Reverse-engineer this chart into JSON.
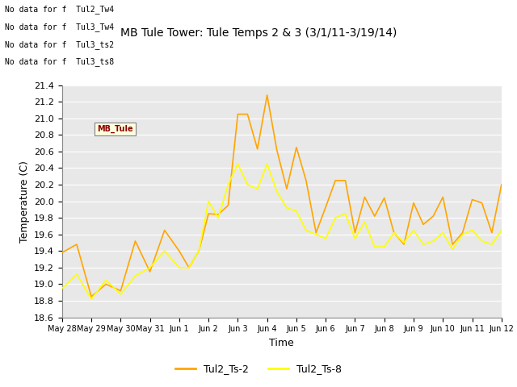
{
  "title": "MB Tule Tower: Tule Temps 2 & 3 (3/1/11-3/19/14)",
  "xlabel": "Time",
  "ylabel": "Temperature (C)",
  "ylim": [
    18.6,
    21.4
  ],
  "legend_labels": [
    "Tul2_Ts-2",
    "Tul2_Ts-8"
  ],
  "line_colors": [
    "#FFA500",
    "#FFFF00"
  ],
  "no_data_texts": [
    "No data for f  Tul2_Tw4",
    "No data for f  Tul3_Tw4",
    "No data for f  Tul3_ts2",
    "No data for f  Tul3_ts8"
  ],
  "bg_color": "#E8E8E8",
  "x_tick_labels": [
    "May 28",
    "May 29",
    "May 30",
    "May 31",
    "Jun 1",
    "Jun 2",
    "Jun 3",
    "Jun 4",
    "Jun 5",
    "Jun 6",
    "Jun 7",
    "Jun 8",
    "Jun 9",
    "Jun 10",
    "Jun 11",
    "Jun 12"
  ],
  "ts2_x": [
    0,
    0.5,
    1.0,
    1.5,
    2.0,
    2.5,
    3.0,
    3.5,
    4.0,
    4.33,
    4.67,
    5.0,
    5.33,
    5.67,
    6.0,
    6.33,
    6.67,
    7.0,
    7.33,
    7.67,
    8.0,
    8.33,
    8.67,
    9.0,
    9.33,
    9.67,
    10.0,
    10.33,
    10.67,
    11.0,
    11.33,
    11.67,
    12.0,
    12.33,
    12.67,
    13.0,
    13.33,
    13.67,
    14.0,
    14.33,
    14.67,
    15.0
  ],
  "ts2_y": [
    19.38,
    19.48,
    18.85,
    19.0,
    18.92,
    19.52,
    19.15,
    19.65,
    19.4,
    19.2,
    19.4,
    19.85,
    19.84,
    19.95,
    21.05,
    21.05,
    20.63,
    21.28,
    20.62,
    20.15,
    20.65,
    20.25,
    19.62,
    19.93,
    20.25,
    20.25,
    19.62,
    20.05,
    19.82,
    20.04,
    19.62,
    19.48,
    19.98,
    19.72,
    19.82,
    20.05,
    19.48,
    19.62,
    20.02,
    19.98,
    19.62,
    20.2
  ],
  "ts8_x": [
    0,
    0.5,
    1.0,
    1.5,
    2.0,
    2.5,
    3.0,
    3.5,
    4.0,
    4.33,
    4.67,
    5.0,
    5.33,
    5.67,
    6.0,
    6.33,
    6.67,
    7.0,
    7.33,
    7.67,
    8.0,
    8.33,
    8.67,
    9.0,
    9.33,
    9.67,
    10.0,
    10.33,
    10.67,
    11.0,
    11.33,
    11.67,
    12.0,
    12.33,
    12.67,
    13.0,
    13.33,
    13.67,
    14.0,
    14.33,
    14.67,
    15.0
  ],
  "ts8_y": [
    18.95,
    19.12,
    18.82,
    19.05,
    18.88,
    19.1,
    19.2,
    19.4,
    19.2,
    19.2,
    19.4,
    20.0,
    19.8,
    20.2,
    20.45,
    20.2,
    20.15,
    20.45,
    20.12,
    19.92,
    19.88,
    19.65,
    19.6,
    19.55,
    19.8,
    19.85,
    19.55,
    19.75,
    19.45,
    19.45,
    19.62,
    19.5,
    19.65,
    19.48,
    19.52,
    19.62,
    19.42,
    19.6,
    19.65,
    19.52,
    19.48,
    19.65
  ],
  "yticks": [
    18.6,
    18.8,
    19.0,
    19.2,
    19.4,
    19.6,
    19.8,
    20.0,
    20.2,
    20.4,
    20.6,
    20.8,
    21.0,
    21.2,
    21.4
  ],
  "title_fontsize": 10,
  "axis_label_fontsize": 9,
  "tick_fontsize": 8
}
